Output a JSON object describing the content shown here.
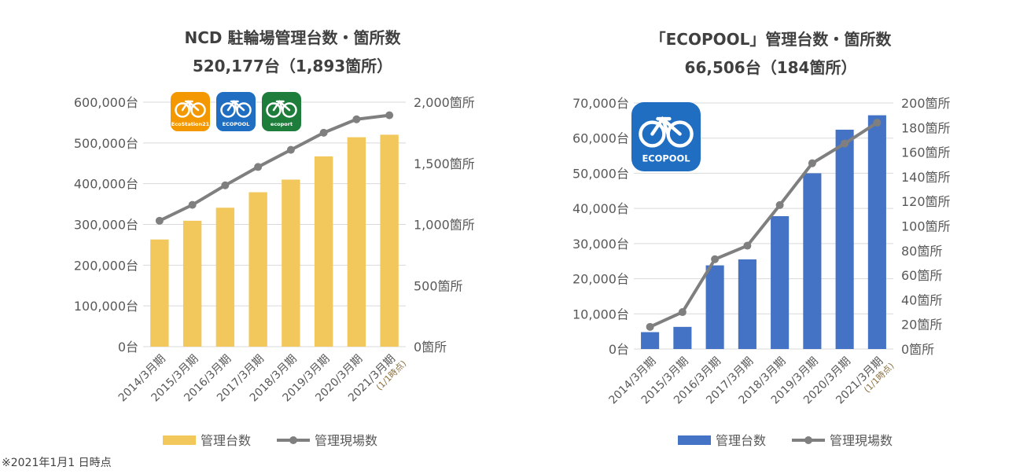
{
  "footnote": "※2021年1月1 日時点",
  "logos": {
    "left": [
      {
        "name": "EcoStation21",
        "color": "#f39800"
      },
      {
        "name": "ECOPOOL",
        "color": "#1f6ec2"
      },
      {
        "name": "ecoport",
        "color": "#1e7d3a"
      }
    ],
    "right": {
      "name": "ECOPOOL",
      "color": "#1f6ec2"
    }
  },
  "chart_data": [
    {
      "type": "bar",
      "title": "NCD 駐輪場管理台数・箇所数",
      "subtitle": "520,177台（1,893箇所）",
      "categories": [
        "2014/3月期",
        "2015/3月期",
        "2016/3月期",
        "2017/3月期",
        "2018/3月期",
        "2019/3月期",
        "2020/3月期",
        "2021/3月期"
      ],
      "last_category_note": "(1/1時点)",
      "bar_series": {
        "name": "管理台数",
        "color": "#f2c75c",
        "values": [
          263000,
          309000,
          341000,
          379000,
          410000,
          467000,
          514000,
          520177
        ]
      },
      "line_series": {
        "name": "管理現場数",
        "color": "#7f7f7f",
        "values": [
          1030,
          1160,
          1320,
          1470,
          1610,
          1750,
          1860,
          1893
        ]
      },
      "left_axis": {
        "ylim": [
          0,
          600000
        ],
        "ticks": [
          "0台",
          "100,000台",
          "200,000台",
          "300,000台",
          "400,000台",
          "500,000台",
          "600,000台"
        ]
      },
      "right_axis": {
        "ylim": [
          0,
          2000
        ],
        "ticks": [
          "0箇所",
          "500箇所",
          "1,000箇所",
          "1,500箇所",
          "2,000箇所"
        ]
      },
      "grid": true,
      "legend": "bottom"
    },
    {
      "type": "bar",
      "title": "「ECOPOOL」管理台数・箇所数",
      "subtitle": "66,506台（184箇所）",
      "categories": [
        "2014/3月期",
        "2015/3月期",
        "2016/3月期",
        "2017/3月期",
        "2018/3月期",
        "2019/3月期",
        "2020/3月期",
        "2021/3月期"
      ],
      "last_category_note": "(1/1時点)",
      "bar_series": {
        "name": "管理台数",
        "color": "#4472c4",
        "values": [
          4800,
          6300,
          23800,
          25500,
          37800,
          50000,
          62400,
          66506
        ]
      },
      "line_series": {
        "name": "管理現場数",
        "color": "#7f7f7f",
        "values": [
          18,
          30,
          73,
          84,
          117,
          151,
          167,
          184
        ]
      },
      "left_axis": {
        "ylim": [
          0,
          70000
        ],
        "ticks": [
          "0台",
          "10,000台",
          "20,000台",
          "30,000台",
          "40,000台",
          "50,000台",
          "60,000台",
          "70,000台"
        ]
      },
      "right_axis": {
        "ylim": [
          0,
          200
        ],
        "ticks": [
          "0箇所",
          "20箇所",
          "40箇所",
          "60箇所",
          "80箇所",
          "100箇所",
          "120箇所",
          "140箇所",
          "160箇所",
          "180箇所",
          "200箇所"
        ]
      },
      "grid": true,
      "legend": "bottom"
    }
  ]
}
